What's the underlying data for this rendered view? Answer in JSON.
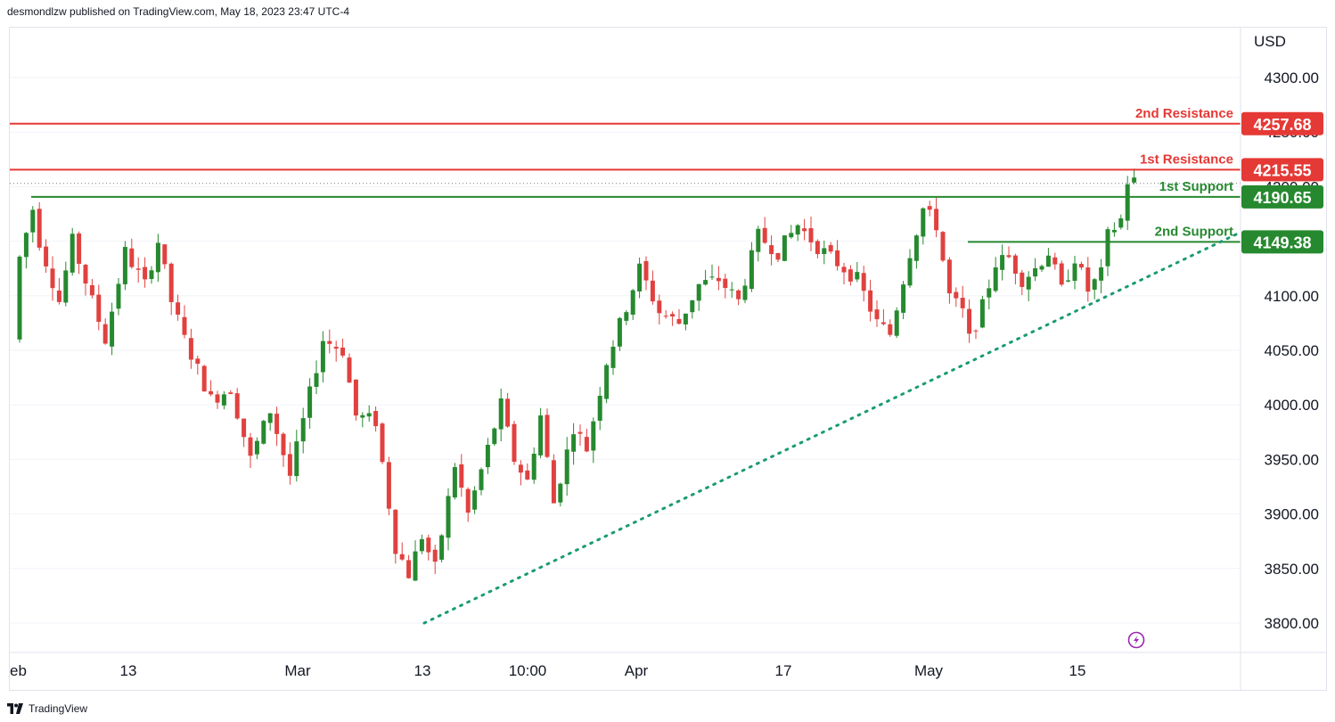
{
  "header": {
    "publisher_line": "desmondlzw published on TradingView.com, May 18, 2023 23:47 UTC-4"
  },
  "footer": {
    "brand": "TradingView"
  },
  "colors": {
    "up": "#26892f",
    "down": "#e0413f",
    "resistance": "#e53935",
    "support": "#26892f",
    "trendline": "#1a9b73",
    "grid": "#f0f3fa",
    "text": "#131722"
  },
  "icons": {
    "lightning": "lightning-icon",
    "brand": "tradingview-logo-icon"
  },
  "chart_data": {
    "type": "candlestick",
    "instrument_currency": "USD",
    "ylim": [
      3780,
      4335
    ],
    "y_ticks": [
      "4300.00",
      "4250.00",
      "4200.00",
      "4100.00",
      "4050.00",
      "4000.00",
      "3950.00",
      "3900.00",
      "3850.00",
      "3800.00"
    ],
    "x_ticks": [
      "eb",
      "13",
      "Mar",
      "13",
      "10:00",
      "Apr",
      "17",
      "May",
      "15"
    ],
    "levels": [
      {
        "name": "2nd Resistance",
        "value": "4257.68",
        "kind": "resistance"
      },
      {
        "name": "1st Resistance",
        "value": "4215.55",
        "kind": "resistance"
      },
      {
        "name": "1st Support",
        "value": "4190.65",
        "kind": "support"
      },
      {
        "name": "2nd Support",
        "value": "4149.38",
        "kind": "support"
      }
    ],
    "trendline": {
      "style": "dotted",
      "from": [
        "13",
        3800
      ],
      "to": [
        "18",
        4157
      ]
    },
    "price_path": [
      {
        "t": 0,
        "v": 4060
      },
      {
        "t": 1,
        "v": 4135
      },
      {
        "t": 3,
        "v": 4180
      },
      {
        "t": 4,
        "v": 4150
      },
      {
        "t": 7,
        "v": 4095
      },
      {
        "t": 9,
        "v": 4150
      },
      {
        "t": 12,
        "v": 4095
      },
      {
        "t": 14,
        "v": 4060
      },
      {
        "t": 17,
        "v": 4140
      },
      {
        "t": 20,
        "v": 4110
      },
      {
        "t": 22,
        "v": 4150
      },
      {
        "t": 24,
        "v": 4095
      },
      {
        "t": 26,
        "v": 4060
      },
      {
        "t": 30,
        "v": 4005
      },
      {
        "t": 33,
        "v": 4015
      },
      {
        "t": 36,
        "v": 3950
      },
      {
        "t": 39,
        "v": 3995
      },
      {
        "t": 42,
        "v": 3935
      },
      {
        "t": 44,
        "v": 3985
      },
      {
        "t": 47,
        "v": 4060
      },
      {
        "t": 50,
        "v": 4050
      },
      {
        "t": 52,
        "v": 3990
      },
      {
        "t": 55,
        "v": 3985
      },
      {
        "t": 58,
        "v": 3870
      },
      {
        "t": 60,
        "v": 3845
      },
      {
        "t": 62,
        "v": 3880
      },
      {
        "t": 64,
        "v": 3850
      },
      {
        "t": 67,
        "v": 3945
      },
      {
        "t": 69,
        "v": 3900
      },
      {
        "t": 71,
        "v": 3940
      },
      {
        "t": 74,
        "v": 4000
      },
      {
        "t": 76,
        "v": 3950
      },
      {
        "t": 78,
        "v": 3930
      },
      {
        "t": 80,
        "v": 3990
      },
      {
        "t": 82,
        "v": 3910
      },
      {
        "t": 85,
        "v": 3980
      },
      {
        "t": 87,
        "v": 3960
      },
      {
        "t": 90,
        "v": 4040
      },
      {
        "t": 93,
        "v": 4090
      },
      {
        "t": 95,
        "v": 4125
      },
      {
        "t": 98,
        "v": 4085
      },
      {
        "t": 101,
        "v": 4075
      },
      {
        "t": 104,
        "v": 4110
      },
      {
        "t": 107,
        "v": 4115
      },
      {
        "t": 110,
        "v": 4095
      },
      {
        "t": 113,
        "v": 4155
      },
      {
        "t": 116,
        "v": 4140
      },
      {
        "t": 119,
        "v": 4165
      },
      {
        "t": 122,
        "v": 4145
      },
      {
        "t": 125,
        "v": 4130
      },
      {
        "t": 128,
        "v": 4115
      },
      {
        "t": 131,
        "v": 4075
      },
      {
        "t": 133,
        "v": 4065
      },
      {
        "t": 136,
        "v": 4140
      },
      {
        "t": 138,
        "v": 4180
      },
      {
        "t": 140,
        "v": 4165
      },
      {
        "t": 142,
        "v": 4100
      },
      {
        "t": 144,
        "v": 4085
      },
      {
        "t": 145,
        "v": 4060
      },
      {
        "t": 147,
        "v": 4090
      },
      {
        "t": 149,
        "v": 4130
      },
      {
        "t": 151,
        "v": 4135
      },
      {
        "t": 153,
        "v": 4115
      },
      {
        "t": 155,
        "v": 4125
      },
      {
        "t": 157,
        "v": 4140
      },
      {
        "t": 159,
        "v": 4105
      },
      {
        "t": 161,
        "v": 4135
      },
      {
        "t": 163,
        "v": 4105
      },
      {
        "t": 165,
        "v": 4120
      },
      {
        "t": 166,
        "v": 4155
      },
      {
        "t": 168,
        "v": 4170
      },
      {
        "t": 169,
        "v": 4205
      }
    ]
  }
}
